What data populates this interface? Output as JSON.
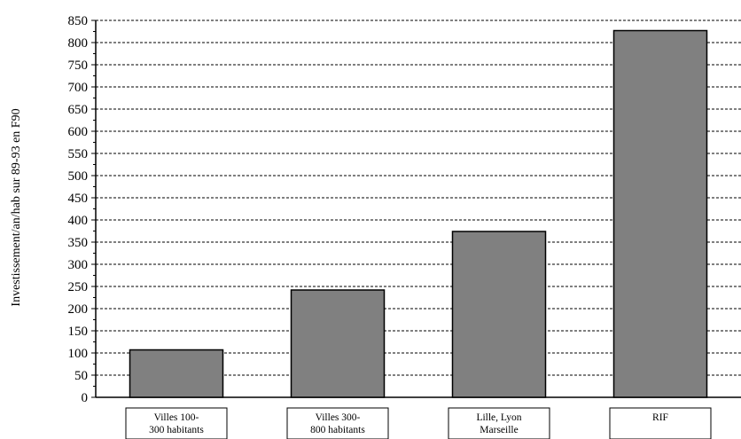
{
  "chart_data": {
    "type": "bar",
    "ylabel": "Investissement/an/hab sur 89-93 en F90",
    "xlabel": "",
    "ylim": [
      0,
      850
    ],
    "y_ticks": [
      0,
      50,
      100,
      150,
      200,
      250,
      300,
      350,
      400,
      450,
      500,
      550,
      600,
      650,
      700,
      750,
      800,
      850
    ],
    "grid": "horizontal dashed",
    "categories": [
      [
        "Villes 100-",
        "300 habitants"
      ],
      [
        "Villes 300-",
        "800 habitants"
      ],
      [
        "Lille, Lyon",
        "Marseille"
      ],
      [
        "RIF"
      ]
    ],
    "values": [
      107,
      242,
      374,
      827
    ],
    "bar_color": "#808080"
  }
}
